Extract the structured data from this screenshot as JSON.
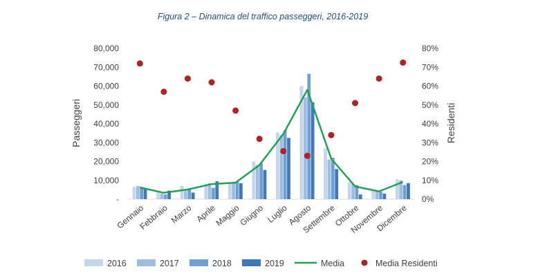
{
  "chart_data": {
    "type": "bar",
    "title": "Figura 2 – Dinamica del traffico passeggeri, 2016-2019",
    "ylabel": "Passeggeri",
    "y2label": "Residenti",
    "ylim": [
      0,
      80000
    ],
    "y2lim": [
      0,
      0.8
    ],
    "yticks": [
      "-",
      "10,000",
      "20,000",
      "30,000",
      "40,000",
      "50,000",
      "60,000",
      "70,000",
      "80,000"
    ],
    "y2ticks": [
      "0%",
      "10%",
      "20%",
      "30%",
      "40%",
      "50%",
      "60%",
      "70%",
      "80%"
    ],
    "grid": false,
    "legend_position": "bottom",
    "categories": [
      "Gennaio",
      "Febbraio",
      "Marzo",
      "Aprile",
      "Maggio",
      "Giugno",
      "Luglio",
      "Agosto",
      "Settembre",
      "Ottobre",
      "Novembre",
      "Dicembre"
    ],
    "series": [
      {
        "name": "2016",
        "kind": "bar",
        "color": "#c5d6eb",
        "values": [
          6500,
          3500,
          7000,
          8000,
          8500,
          20000,
          35500,
          60000,
          27000,
          9000,
          5000,
          10500
        ]
      },
      {
        "name": "2017",
        "kind": "bar",
        "color": "#9fbde0",
        "values": [
          7000,
          3000,
          4500,
          8500,
          8500,
          18000,
          34000,
          54000,
          21000,
          8000,
          4500,
          10000
        ]
      },
      {
        "name": "2018",
        "kind": "bar",
        "color": "#6f9fd3",
        "values": [
          6000,
          2500,
          5500,
          6000,
          9500,
          19000,
          36500,
          66500,
          22000,
          7500,
          4000,
          7500
        ]
      },
      {
        "name": "2019",
        "kind": "bar",
        "color": "#3f78bd",
        "values": [
          5500,
          4500,
          3500,
          9500,
          8500,
          15500,
          32500,
          51500,
          16000,
          2500,
          3000,
          8500
        ]
      },
      {
        "name": "Media",
        "kind": "line",
        "color": "#22a055",
        "values": [
          6250,
          3375,
          5125,
          8000,
          8750,
          18125,
          34625,
          58000,
          21500,
          6750,
          4125,
          9125
        ]
      },
      {
        "name": "Media Residenti",
        "kind": "scatter",
        "axis": "right",
        "color": "#b22222",
        "values": [
          0.72,
          0.57,
          0.64,
          0.62,
          0.47,
          0.32,
          0.255,
          0.23,
          0.34,
          0.51,
          0.64,
          0.725
        ]
      }
    ]
  }
}
